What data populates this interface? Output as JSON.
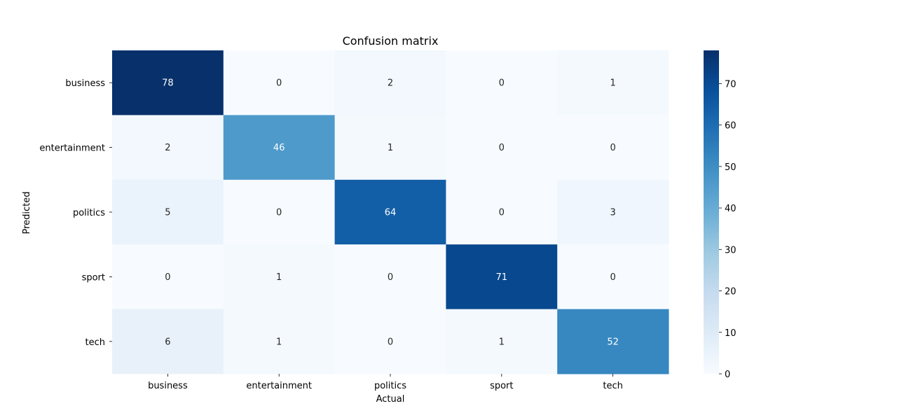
{
  "chart_data": {
    "type": "heatmap",
    "title": "Confusion matrix",
    "xlabel": "Actual",
    "ylabel": "Predicted",
    "x_categories": [
      "business",
      "entertainment",
      "politics",
      "sport",
      "tech"
    ],
    "y_categories": [
      "business",
      "entertainment",
      "politics",
      "sport",
      "tech"
    ],
    "values": [
      [
        78,
        0,
        2,
        0,
        1
      ],
      [
        2,
        46,
        1,
        0,
        0
      ],
      [
        5,
        0,
        64,
        0,
        3
      ],
      [
        0,
        1,
        0,
        71,
        0
      ],
      [
        6,
        1,
        0,
        1,
        52
      ]
    ],
    "colormap": "Blues",
    "vmin": 0,
    "vmax": 78,
    "colorbar_ticks": [
      0,
      10,
      20,
      30,
      40,
      50,
      60,
      70
    ],
    "annotations": true
  }
}
